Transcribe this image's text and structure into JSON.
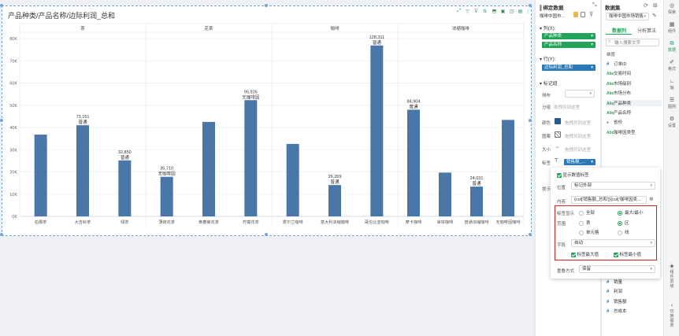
{
  "chart": {
    "title": "产品种类/产品名称/边际利润_总和",
    "toolbar_icons": [
      "expand-icon",
      "filter-icon",
      "funnel-icon",
      "link-icon",
      "export-icon",
      "image-icon",
      "fullscreen-icon",
      "book-icon",
      "more-icon"
    ]
  },
  "chart_data": {
    "type": "bar",
    "title": "产品种类/产品名称/边际利润_总和",
    "groups": [
      {
        "name": "茶",
        "categories": [
          "伯爵茶",
          "大吉岭茶",
          "绿茶"
        ]
      },
      {
        "name": "花茶",
        "categories": [
          "薄荷花茶",
          "黄春菊花茶",
          "柠檬花茶"
        ]
      },
      {
        "name": "咖啡",
        "categories": [
          "爱尔兰咖啡",
          "意大利浓缩咖啡",
          "哥伦比亚咖啡"
        ]
      },
      {
        "name": "浓缩咖啡",
        "categories": [
          "摩卡咖啡",
          "拿铁咖啡",
          "普通浓缩咖啡",
          "无咖啡因咖啡"
        ]
      }
    ],
    "categories": [
      "伯爵茶",
      "大吉岭茶",
      "绿茶",
      "薄荷花茶",
      "黄春菊花茶",
      "柠檬花茶",
      "爱尔兰咖啡",
      "意大利浓缩咖啡",
      "哥伦比亚咖啡",
      "摩卡咖啡",
      "拿铁咖啡",
      "普通浓缩咖啡",
      "无咖啡因咖啡"
    ],
    "values": [
      36800,
      41000,
      25200,
      17800,
      42500,
      52300,
      32600,
      14100,
      76900,
      48000,
      19700,
      13400,
      43400
    ],
    "data_labels": [
      {
        "index": 1,
        "value": "73,151",
        "sub": "普通"
      },
      {
        "index": 2,
        "value": "32,850",
        "sub": "普通"
      },
      {
        "index": 3,
        "value": "35,710",
        "sub": "无咖啡因"
      },
      {
        "index": 5,
        "value": "95,926",
        "sub": "无咖啡因"
      },
      {
        "index": 7,
        "value": "26,269",
        "sub": "普通"
      },
      {
        "index": 8,
        "value": "128,311",
        "sub": "普通"
      },
      {
        "index": 9,
        "value": "84,904",
        "sub": "普通"
      },
      {
        "index": 11,
        "value": "24,031",
        "sub": "普通"
      }
    ],
    "ylim": [
      0,
      80000
    ],
    "yticks": [
      "0K",
      "10K",
      "20K",
      "30K",
      "40K",
      "50K",
      "60K",
      "70K",
      "80K"
    ],
    "grid": true,
    "color": "#4a77a8"
  },
  "binding": {
    "title": "绑定数据",
    "dataset_name": "咖啡中国市...",
    "columns_label": "列(X):",
    "columns": [
      "产品种类",
      "产品名称"
    ],
    "rows_label": "行(Y):",
    "rows": [
      "边际利润_总和"
    ],
    "marks_label": "标记组",
    "mark_fields": [
      {
        "label": "排布",
        "value": ""
      },
      {
        "label": "分组",
        "value": "拖拽列到这里"
      },
      {
        "label": "颜色",
        "value": "拖拽列到这里"
      },
      {
        "label": "图案",
        "value": "拖拽列到这里"
      },
      {
        "label": "大小",
        "value": "拖拽列到这里"
      },
      {
        "label": "标签",
        "value": "销售额_..."
      }
    ],
    "tooltip_label": "提示"
  },
  "label_popup": {
    "show_labels": "显示数值标签",
    "position_label": "位置",
    "position_value": "标记外部",
    "content_label": "内容",
    "content_value": "{col['销售额_总和']}{col['咖啡因类...",
    "display_label": "标签显示",
    "display_all": "全部",
    "display_maxmin": "最大/最小",
    "range_label": "范围",
    "range_table": "表",
    "range_zone": "区",
    "range_cell": "单元格",
    "range_line": "线",
    "field_label": "字段",
    "field_value": "自动",
    "max_label": "标签最大值",
    "min_label": "标签最小值",
    "overlap_label": "重叠方式",
    "overlap_value": "保留"
  },
  "dataset": {
    "title": "数据集",
    "name": "咖啡中国市场销售",
    "tabs": [
      "数据列",
      "分析算法"
    ],
    "search_placeholder": "输入搜索文字",
    "dimension_header": "维度",
    "dimensions": [
      {
        "type": "#",
        "name": "订单ID"
      },
      {
        "type": "Abc",
        "name": "交易时间"
      },
      {
        "type": "Abc",
        "name": "市场级别"
      },
      {
        "type": "Abc",
        "name": "市场分布"
      },
      {
        "type": "Abc",
        "name": "产品种类"
      },
      {
        "type": "Abc",
        "name": "产品名称"
      },
      {
        "type": "geo",
        "name": "省份"
      },
      {
        "type": "Abc",
        "name": "咖啡因类型"
      }
    ],
    "measures": [
      {
        "type": "#",
        "name": "销量"
      },
      {
        "type": "#",
        "name": "利润"
      },
      {
        "type": "#",
        "name": "销售额"
      },
      {
        "type": "#",
        "name": "总成本"
      }
    ]
  },
  "rail": {
    "items": [
      "探索",
      "组件",
      "数据",
      "格式",
      "轴",
      "图例",
      "设置"
    ],
    "bottom": [
      "组件层级",
      "切换图表"
    ]
  }
}
